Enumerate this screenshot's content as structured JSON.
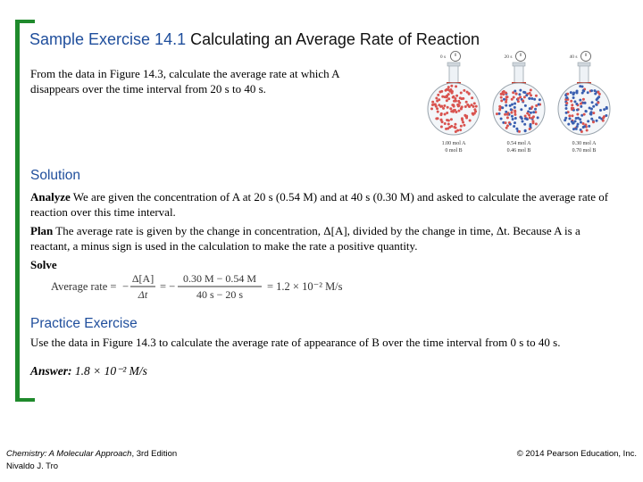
{
  "title": {
    "bold": "Sample Exercise 14.1",
    "rest": " Calculating an Average Rate of Reaction"
  },
  "problem": "From the data in Figure 14.3, calculate the average rate at which A disappears over the time interval from 20 s to 40 s.",
  "figure": {
    "flasks": [
      {
        "time": "0 s",
        "mol_a": "1.00 mol A",
        "mol_b": "0 mol B"
      },
      {
        "time": "20 s",
        "mol_a": "0.54 mol A",
        "mol_b": "0.46 mol B"
      },
      {
        "time": "40 s",
        "mol_a": "0.30 mol A",
        "mol_b": "0.70 mol B"
      }
    ]
  },
  "solution": {
    "heading": "Solution",
    "analyze_label": "Analyze",
    "analyze_text": " We are given the concentration of A at 20 s (0.54 M) and at 40 s (0.30 M) and asked to calculate the average rate of reaction over this time interval.",
    "plan_label": "Plan",
    "plan_text": " The average rate is given by the change in concentration, Δ[A], divided by the change in time, Δt. Because A is a reactant, a minus sign is used in the calculation to make the rate a positive quantity.",
    "solve_label": "Solve"
  },
  "equation": {
    "lhs": "Average rate =",
    "minus": "−",
    "frac1_num": "Δ[A]",
    "frac1_den": "Δt",
    "frac2_num": "0.30 M − 0.54 M",
    "frac2_den": "40 s − 20 s",
    "result": "= 1.2 × 10⁻² M/s"
  },
  "practice": {
    "heading": "Practice Exercise",
    "text": "Use the data in Figure 14.3 to calculate the average rate of appearance of B over the time interval from 0 s to 40 s.",
    "answer_label": "Answer:",
    "answer_text": " 1.8 × 10⁻² M/s"
  },
  "footer": {
    "book": "Chemistry: A Molecular Approach",
    "edition": ", 3rd Edition",
    "author": "Nivaldo J. Tro",
    "copyright": "© 2014 Pearson Education, Inc."
  },
  "colors": {
    "accent": "#1f4e9c",
    "bracket": "#1f8a2c",
    "molecule_a": "#d9534f",
    "molecule_b": "#3a5fb0"
  }
}
